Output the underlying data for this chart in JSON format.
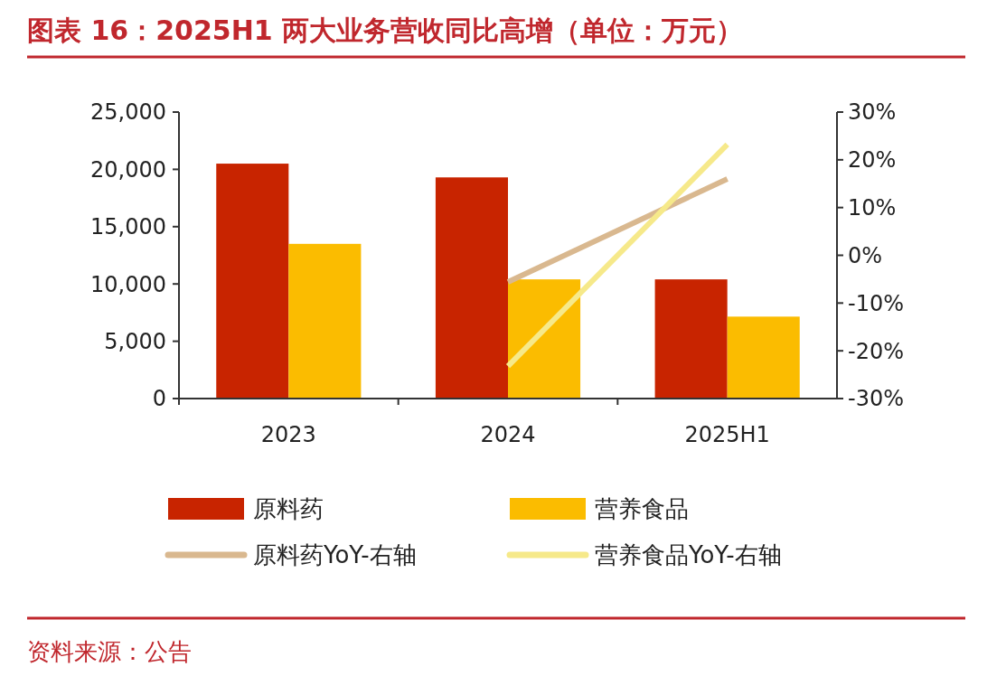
{
  "chart_data": {
    "type": "bar",
    "title": "图表 16：2025H1 两大业务营收同比高增（单位：万元）",
    "categories": [
      "2023",
      "2024",
      "2025H1"
    ],
    "series": [
      {
        "name": "原料药",
        "color": "#c82400",
        "values": [
          20500,
          19300,
          10400
        ]
      },
      {
        "name": "营养食品",
        "color": "#fbbc00",
        "values": [
          13500,
          10400,
          7150
        ]
      },
      {
        "name": "原料药YoY-右轴",
        "type": "line",
        "axis": "y2",
        "color": "#d9b88f",
        "values": [
          null,
          -5.6,
          16
        ]
      },
      {
        "name": "营养食品YoY-右轴",
        "type": "line",
        "axis": "y2",
        "color": "#f6e98a",
        "values": [
          null,
          -23.2,
          23.2
        ]
      }
    ],
    "ylim": [
      0,
      25000
    ],
    "yticks": [
      {
        "value": 0,
        "label": "0"
      },
      {
        "value": 5000,
        "label": "5,000"
      },
      {
        "value": 10000,
        "label": "10,000"
      },
      {
        "value": 15000,
        "label": "15,000"
      },
      {
        "value": 20000,
        "label": "20,000"
      },
      {
        "value": 25000,
        "label": "25,000"
      }
    ],
    "y2lim": [
      -30,
      30
    ],
    "y2ticks": [
      {
        "value": -30,
        "label": "-30%"
      },
      {
        "value": -20,
        "label": "-20%"
      },
      {
        "value": -10,
        "label": "-10%"
      },
      {
        "value": 0,
        "label": "0%"
      },
      {
        "value": 10,
        "label": "10%"
      },
      {
        "value": 20,
        "label": "20%"
      },
      {
        "value": 30,
        "label": "30%"
      }
    ],
    "legend": "bottom",
    "grid": false,
    "marker": "none",
    "annotations": [
      "资料来源：公告"
    ]
  }
}
